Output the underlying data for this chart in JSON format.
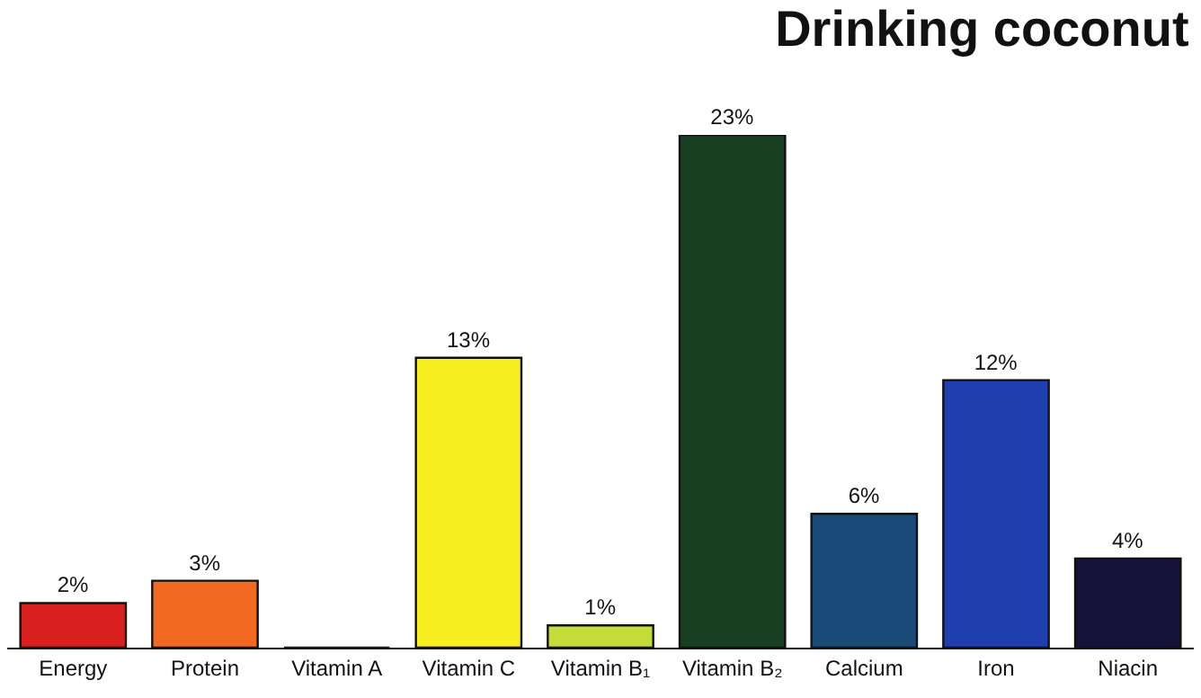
{
  "chart_data": {
    "type": "bar",
    "title": "Drinking coconut",
    "categories": [
      "Energy",
      "Protein",
      "Vitamin A",
      "Vitamin C",
      "Vitamin B₁",
      "Vitamin B₂",
      "Calcium",
      "Iron",
      "Niacin"
    ],
    "values": [
      2,
      3,
      0,
      13,
      1,
      23,
      6,
      12,
      4
    ],
    "value_labels": [
      "2%",
      "3%",
      null,
      "13%",
      "1%",
      "23%",
      "6%",
      "12%",
      "4%"
    ],
    "colors": [
      "#d8201e",
      "#f26a22",
      "#222222",
      "#f7ee22",
      "#c4dc3a",
      "#173f22",
      "#1a4a78",
      "#1f3fb0",
      "#17123a"
    ]
  }
}
